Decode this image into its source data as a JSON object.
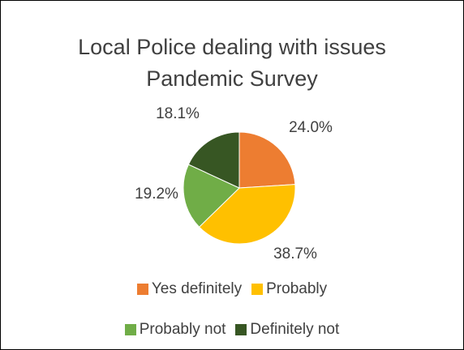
{
  "chart_data": {
    "type": "pie",
    "title": "Local Police dealing with issues",
    "subtitle": "Pandemic Survey",
    "categories": [
      "Yes definitely",
      "Probably",
      "Probably not",
      "Definitely not"
    ],
    "values": [
      24.0,
      38.7,
      19.2,
      18.1
    ],
    "labels": [
      "24.0%",
      "38.7%",
      "19.2%",
      "18.1%"
    ],
    "colors": [
      "#ED7D31",
      "#FFC000",
      "#70AD47",
      "#375623"
    ],
    "legend_position": "bottom"
  }
}
